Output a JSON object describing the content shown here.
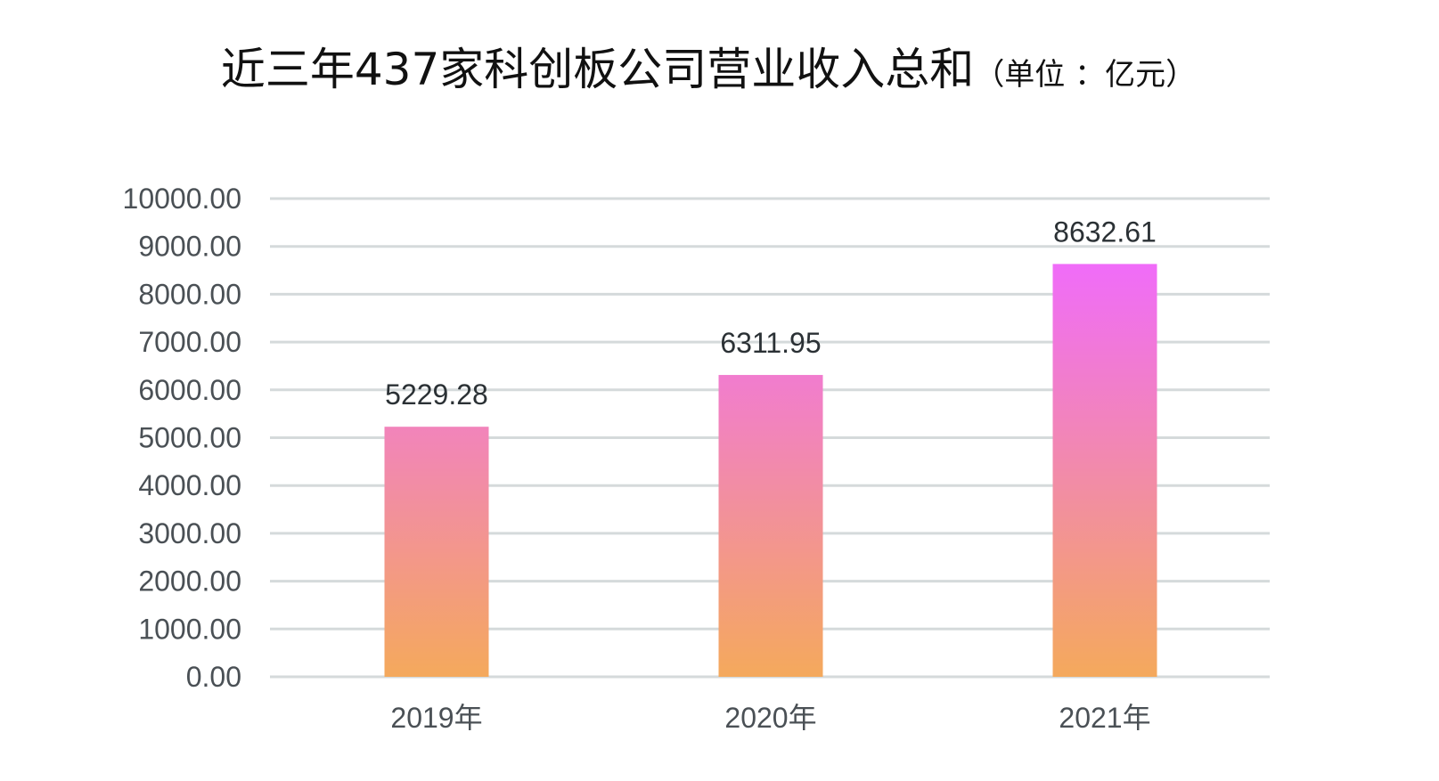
{
  "chart_data": {
    "type": "bar",
    "title": "近三年437家科创板公司营业收入总和",
    "subtitle": "（单位 ：亿元）",
    "categories": [
      "2019年",
      "2020年",
      "2021年"
    ],
    "values": [
      5229.28,
      6311.95,
      8632.61
    ],
    "data_labels": [
      "5229.28",
      "6311.95",
      "8632.61"
    ],
    "ylim": [
      0,
      10000
    ],
    "yticks": [
      "0.00",
      "1000.00",
      "2000.00",
      "3000.00",
      "4000.00",
      "5000.00",
      "6000.00",
      "7000.00",
      "8000.00",
      "9000.00",
      "10000.00"
    ],
    "grid": true,
    "colors": {
      "gradient_bottom": "#f4a95c",
      "gradient_top": "#f06bfb",
      "grid": "#d5dadb"
    }
  }
}
